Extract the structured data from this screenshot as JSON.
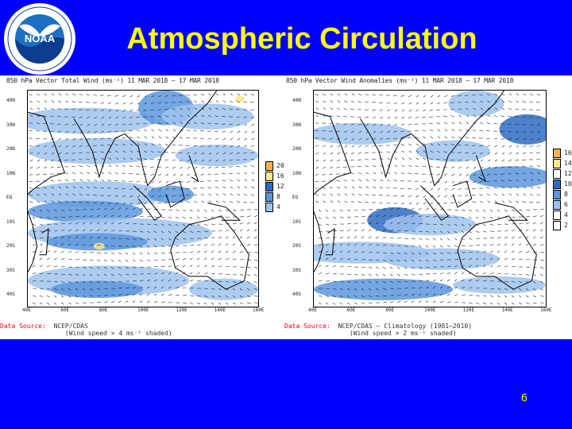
{
  "slide": {
    "title": "Atmospheric Circulation",
    "page_number": "6",
    "colors": {
      "background": "#0000ff",
      "title": "#ffff00",
      "shade_light": "#9fc3ef",
      "shade_mid": "#5b96dd",
      "shade_dark": "#2e6bc2",
      "shade_yellow": "#ffe68a",
      "shade_orange": "#ffb24a"
    }
  },
  "logo": {
    "name": "NOAA",
    "ring_text": "NATIONAL OCEANIC AND ATMOSPHERIC ADMINISTRATION · U.S. DEPARTMENT OF COMMERCE"
  },
  "left_panel": {
    "title": "850 hPa Vector Total Wind (ms⁻¹) 11 MAR 2018 – 17 MAR 2018",
    "lat_labels": [
      "40N",
      "30N",
      "20N",
      "10N",
      "EQ",
      "10S",
      "20S",
      "30S",
      "40S"
    ],
    "lon_labels": [
      "40E",
      "60E",
      "80E",
      "100E",
      "120E",
      "140E",
      "160E"
    ],
    "colorbar_labels": [
      "20",
      "16",
      "12",
      "8",
      "4"
    ],
    "source_label": "Data Source:",
    "source_value": "NCEP/CDAS",
    "source_note": "(Wind speed > 4 ms⁻¹ shaded)"
  },
  "right_panel": {
    "title": "850 hPa Vector Wind Anomalies (ms⁻¹) 11 MAR 2018 – 17 MAR 2018",
    "lat_labels": [
      "40N",
      "30N",
      "20N",
      "10N",
      "EQ",
      "10S",
      "20S",
      "30S",
      "40S"
    ],
    "lon_labels": [
      "40E",
      "60E",
      "80E",
      "100E",
      "120E",
      "140E",
      "160E"
    ],
    "colorbar_labels": [
      "16",
      "14",
      "12",
      "10",
      "8",
      "6",
      "4",
      "2"
    ],
    "source_label": "Data Source:",
    "source_value": "NCEP/CDAS – Climatology (1981–2010)",
    "source_note": "(Wind speed > 2 ms⁻¹ shaded)"
  }
}
